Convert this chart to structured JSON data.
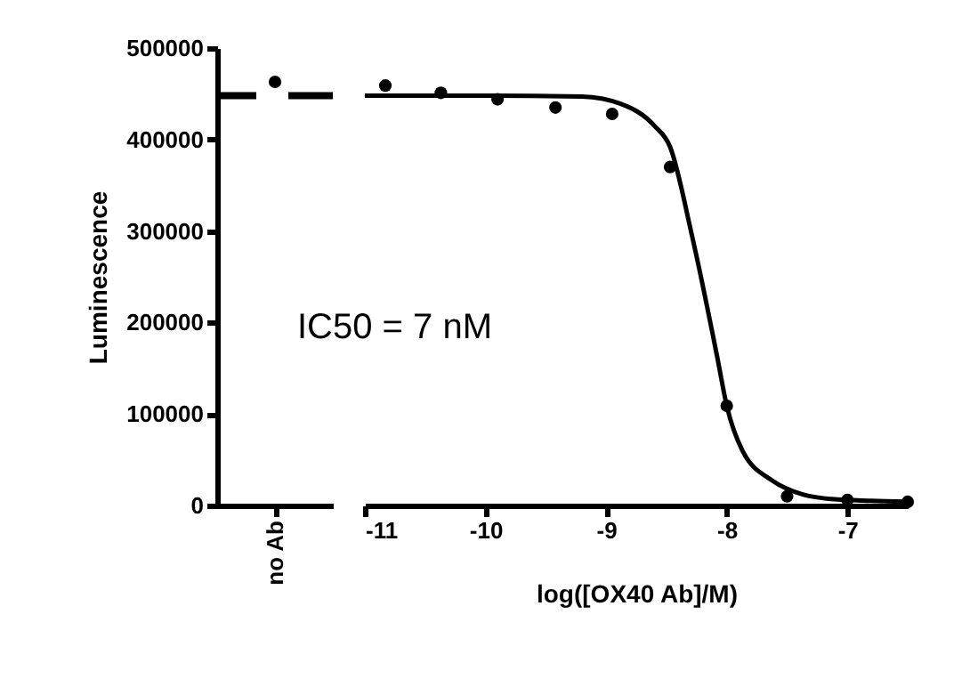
{
  "chart_data": [
    {
      "type": "scatter",
      "categories": [
        "no Ab"
      ],
      "values": [
        463000
      ],
      "color": "#000000",
      "marker": "circle",
      "ylabel": "Luminescence",
      "ylim": [
        0,
        500000
      ],
      "yticks": [
        0,
        100000,
        200000,
        300000,
        400000,
        500000
      ],
      "ref_lines": [
        {
          "axis": "y",
          "value": 448000,
          "line_style": "dashed",
          "color": "#000000"
        }
      ],
      "annotations": [
        "IC50 = 7 nM"
      ],
      "grid": false
    },
    {
      "type": "scatter",
      "xlabel": "log([OX40 Ab]/M)",
      "xlim": [
        -11,
        -6.5
      ],
      "xticks": [
        -11,
        -10,
        -9,
        -8,
        -7
      ],
      "ylim": [
        0,
        500000
      ],
      "tick_labels": "x",
      "grid": false,
      "marker": "circle",
      "series": [
        {
          "type": "scatter",
          "color": "#000000",
          "x": [
            -10.83,
            -10.37,
            -9.9,
            -9.42,
            -8.95,
            -8.47,
            -8.0,
            -7.5,
            -7.0,
            -6.5
          ],
          "values": [
            459000,
            451000,
            444000,
            435000,
            428000,
            370000,
            109000,
            10000,
            6000,
            4000
          ]
        },
        {
          "type": "line",
          "color": "#000000",
          "line_style": "solid",
          "marker": "none",
          "x": [
            -11,
            -10,
            -9.2,
            -8.88,
            -8.6,
            -8.47,
            -8.29,
            -8.08,
            -8.0,
            -7.87,
            -7.62,
            -7.37,
            -7.13,
            -6.8,
            -6.5
          ],
          "values": [
            448000,
            448000,
            447000,
            439000,
            415000,
            392000,
            296000,
            163000,
            109000,
            60000,
            27000,
            12000,
            7000,
            5000,
            4000
          ]
        }
      ]
    }
  ]
}
